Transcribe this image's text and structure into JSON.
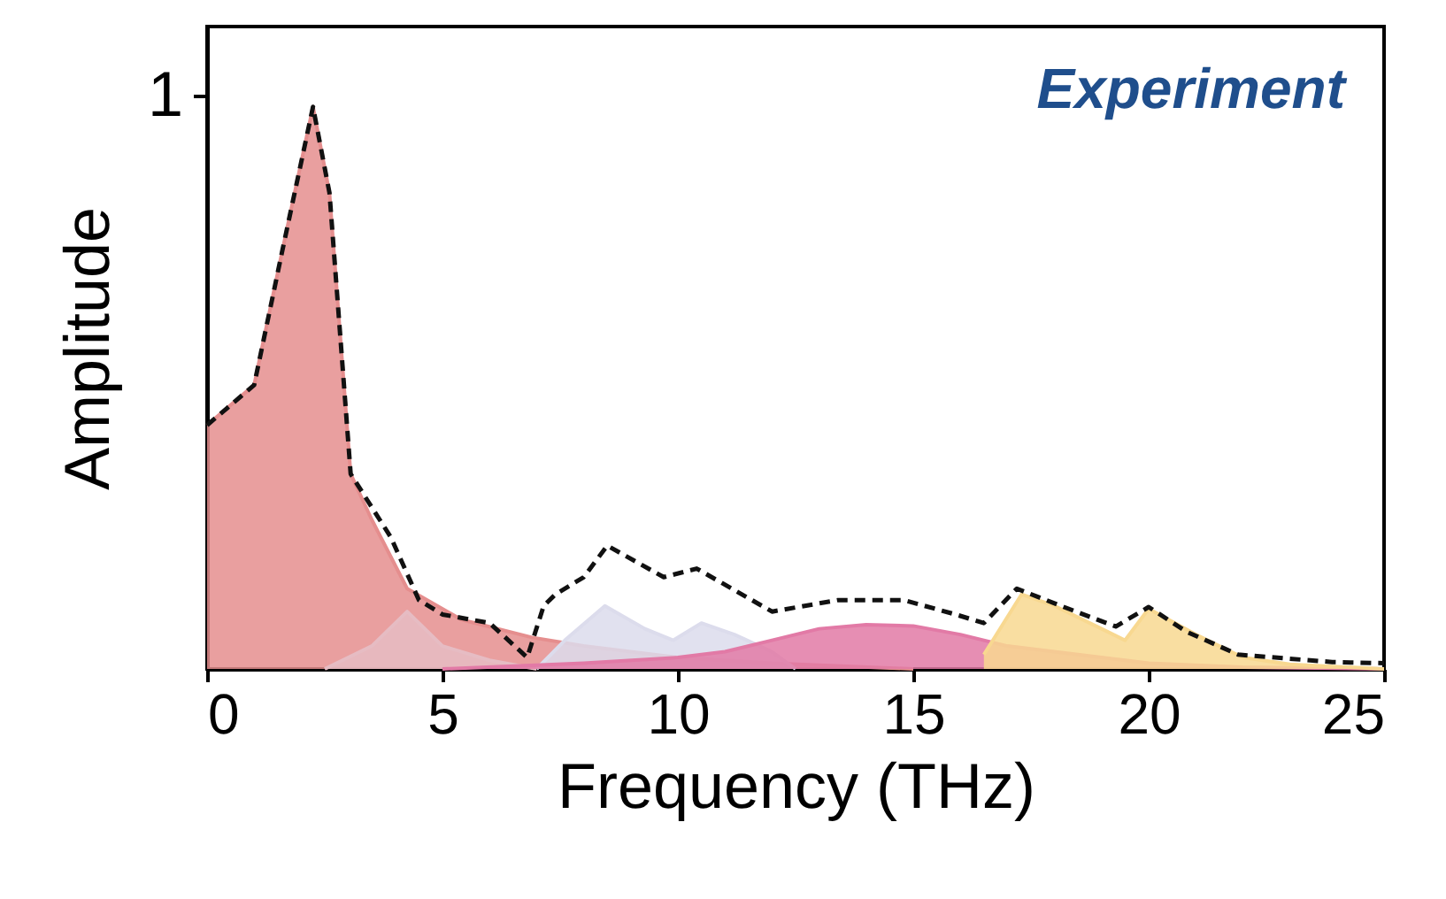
{
  "chart_data": {
    "type": "area",
    "xlabel": "Frequency (THz)",
    "ylabel": "Amplitude",
    "annotations": [
      "Experiment"
    ],
    "xlim": [
      0,
      25
    ],
    "xticks": [
      0,
      5,
      10,
      15,
      20,
      25
    ],
    "ylim": [
      0,
      1.12
    ],
    "yticks": [
      1
    ],
    "grid": false,
    "series": [
      {
        "color": "#e58e8e",
        "x": [
          0,
          1,
          1.6,
          2.25,
          2.6,
          3.05,
          3.5,
          4.25,
          5.4,
          6.9,
          8,
          10,
          12,
          15
        ],
        "values": [
          0.425,
          0.495,
          0.73,
          0.98,
          0.83,
          0.34,
          0.26,
          0.14,
          0.086,
          0.055,
          0.04,
          0.02,
          0.01,
          0
        ]
      },
      {
        "color": "#e6bcc3",
        "x": [
          2.5,
          3.5,
          4.25,
          5,
          6,
          7
        ],
        "values": [
          0,
          0.04,
          0.1,
          0.04,
          0.015,
          0
        ]
      },
      {
        "color": "#dcdcec",
        "x": [
          7,
          7.6,
          8.45,
          9.3,
          9.9,
          10.5,
          11.2,
          12,
          12.5
        ],
        "values": [
          0,
          0.05,
          0.11,
          0.07,
          0.05,
          0.08,
          0.06,
          0.03,
          0
        ]
      },
      {
        "color": "#e27aa6",
        "x": [
          5,
          8,
          10,
          11,
          12,
          13,
          14,
          15,
          16,
          17,
          18,
          19,
          20,
          22,
          25
        ],
        "values": [
          0,
          0.01,
          0.02,
          0.03,
          0.05,
          0.07,
          0.077,
          0.075,
          0.06,
          0.04,
          0.03,
          0.02,
          0.01,
          0.003,
          0
        ]
      },
      {
        "color": "#f8d890",
        "x": [
          16.5,
          17.3,
          18,
          19,
          19.5,
          20,
          21,
          22,
          23,
          25
        ],
        "values": [
          0.025,
          0.13,
          0.11,
          0.07,
          0.05,
          0.105,
          0.06,
          0.02,
          0.008,
          0
        ]
      },
      {
        "type": "line",
        "line_style": "dashed",
        "color": "#111111",
        "x": [
          0,
          1,
          1.6,
          2.25,
          2.6,
          3.05,
          3.9,
          4.5,
          5,
          6,
          6.8,
          7.15,
          7.4,
          8,
          8.5,
          9.7,
          10.4,
          12,
          13.4,
          14.8,
          15.9,
          16.5,
          17.2,
          18.2,
          19.3,
          20,
          20.8,
          21.9,
          23.9,
          25
        ],
        "values": [
          0.425,
          0.495,
          0.73,
          0.98,
          0.83,
          0.34,
          0.23,
          0.12,
          0.095,
          0.08,
          0.02,
          0.11,
          0.13,
          0.16,
          0.215,
          0.16,
          0.175,
          0.1,
          0.12,
          0.12,
          0.095,
          0.08,
          0.14,
          0.108,
          0.074,
          0.108,
          0.065,
          0.025,
          0.012,
          0.01
        ]
      }
    ]
  }
}
